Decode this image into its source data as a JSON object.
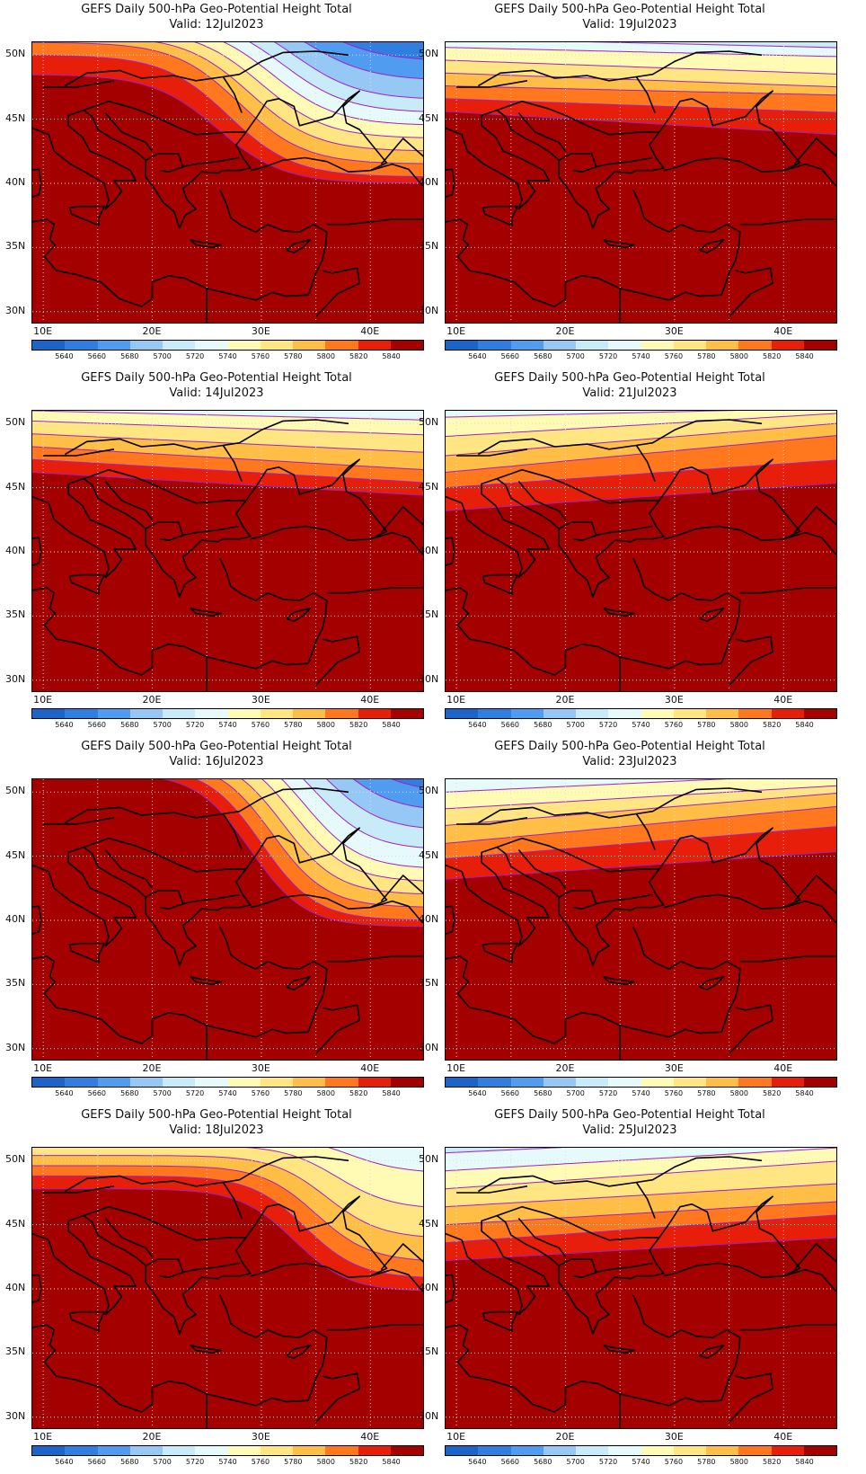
{
  "palette": [
    "#1c64c8",
    "#2f7ee0",
    "#4f9cf0",
    "#96c8f5",
    "#c8ebfa",
    "#e6fafc",
    "#fffab4",
    "#ffe682",
    "#ffbe46",
    "#ff781e",
    "#e61e0a",
    "#a50000"
  ],
  "colorbar_labels": [
    "5640",
    "5660",
    "5680",
    "5700",
    "5720",
    "5740",
    "5760",
    "5780",
    "5800",
    "5820",
    "5840"
  ],
  "lat_labels": [
    "50N",
    "45N",
    "40N",
    "35N",
    "30N"
  ],
  "lon_labels": [
    "10E",
    "20E",
    "30E",
    "40E"
  ],
  "panels": [
    {
      "title": "GEFS Daily 500-hPa Geo-Potential Height Total",
      "valid": "Valid:  12Jul2023"
    },
    {
      "title": "GEFS Daily 500-hPa Geo-Potential Height Total",
      "valid": "Valid:  19Jul2023"
    },
    {
      "title": "GEFS Daily 500-hPa Geo-Potential Height Total",
      "valid": "Valid:  14Jul2023"
    },
    {
      "title": "GEFS Daily 500-hPa Geo-Potential Height Total",
      "valid": "Valid:  21Jul2023"
    },
    {
      "title": "GEFS Daily 500-hPa Geo-Potential Height Total",
      "valid": "Valid:  16Jul2023"
    },
    {
      "title": "GEFS Daily 500-hPa Geo-Potential Height Total",
      "valid": "Valid:  23Jul2023"
    },
    {
      "title": "GEFS Daily 500-hPa Geo-Potential Height Total",
      "valid": "Valid:  18Jul2023"
    },
    {
      "title": "GEFS Daily 500-hPa Geo-Potential Height Total",
      "valid": "Valid:  25Jul2023"
    }
  ]
}
